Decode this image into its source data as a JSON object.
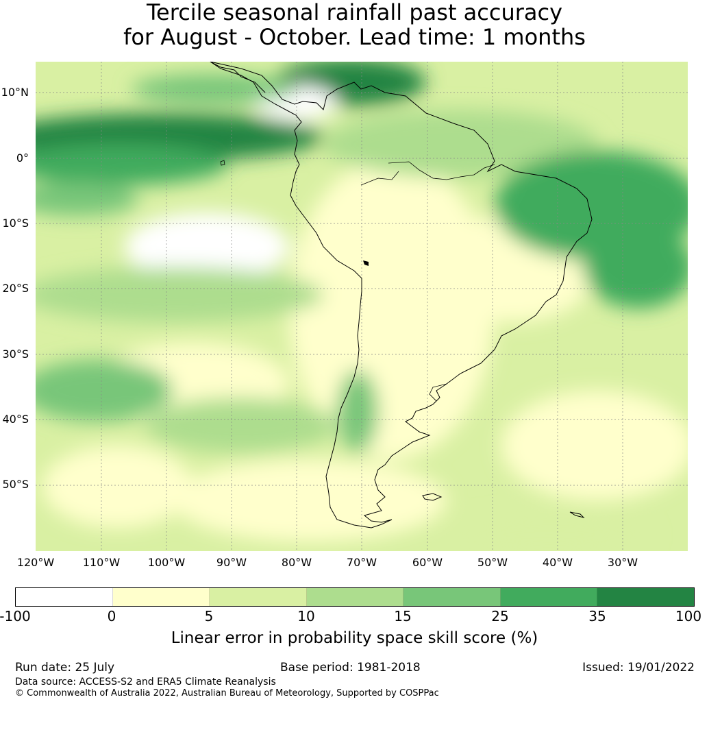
{
  "title": {
    "line1": "Tercile seasonal rainfall past accuracy",
    "line2": "for August - October. Lead time: 1 months"
  },
  "map": {
    "region": "South America",
    "lat_labels": [
      "10°N",
      "0°",
      "10°S",
      "20°S",
      "30°S",
      "40°S",
      "50°S"
    ],
    "lon_labels": [
      "120°W",
      "110°W",
      "100°W",
      "90°W",
      "80°W",
      "70°W",
      "60°W",
      "50°W",
      "40°W",
      "30°W"
    ]
  },
  "colorbar": {
    "ticks": [
      "-100",
      "0",
      "5",
      "10",
      "15",
      "25",
      "35",
      "100"
    ],
    "colors": [
      "#ffffff",
      "#ffffcc",
      "#d9f0a3",
      "#addd8e",
      "#78c679",
      "#41ab5d",
      "#238443"
    ],
    "label": "Linear error in probability space skill score (%)"
  },
  "footer": {
    "run_date": "Run date: 25 July",
    "base_period": "Base period: 1981-2018",
    "issued": "Issued: 19/01/2022",
    "data_source": "Data source: ACCESS-S2 and ERA5 Climate Reanalysis",
    "copyright": "© Commonwealth of Australia 2022, Australian Bureau of Meteorology, Supported by COSPPac"
  }
}
